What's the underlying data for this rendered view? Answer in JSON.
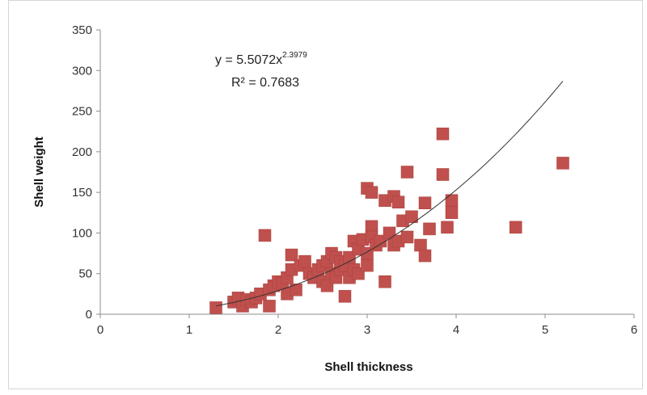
{
  "chart_data": {
    "type": "scatter",
    "xlabel": "Shell thickness",
    "ylabel": "Shell weight",
    "xlim": [
      0,
      6
    ],
    "ylim": [
      0,
      350
    ],
    "x_ticks": [
      "0",
      "1",
      "2",
      "3",
      "4",
      "5",
      "6"
    ],
    "y_ticks": [
      "0",
      "50",
      "100",
      "150",
      "200",
      "250",
      "300",
      "350"
    ],
    "grid": false,
    "legend": "none",
    "marker_color": "#c0504d",
    "trendline": {
      "type": "power",
      "coefficient": 5.5072,
      "exponent": 2.3979,
      "x_range": [
        1.3,
        5.2
      ],
      "equation_prefix": "y = 5.5072x",
      "equation_exponent": "2.3979",
      "r_squared": "R² = 0.7683",
      "color": "#333333"
    },
    "series": [
      {
        "points": [
          [
            1.3,
            8
          ],
          [
            1.5,
            15
          ],
          [
            1.55,
            20
          ],
          [
            1.6,
            10
          ],
          [
            1.65,
            18
          ],
          [
            1.7,
            15
          ],
          [
            1.75,
            20
          ],
          [
            1.8,
            25
          ],
          [
            1.85,
            97
          ],
          [
            1.9,
            10
          ],
          [
            1.9,
            30
          ],
          [
            1.95,
            35
          ],
          [
            2.0,
            40
          ],
          [
            2.05,
            38
          ],
          [
            2.1,
            25
          ],
          [
            2.1,
            45
          ],
          [
            2.15,
            73
          ],
          [
            2.15,
            55
          ],
          [
            2.2,
            30
          ],
          [
            2.25,
            60
          ],
          [
            2.3,
            65
          ],
          [
            2.35,
            50
          ],
          [
            2.4,
            45
          ],
          [
            2.45,
            55
          ],
          [
            2.5,
            60
          ],
          [
            2.5,
            40
          ],
          [
            2.55,
            35
          ],
          [
            2.55,
            65
          ],
          [
            2.6,
            75
          ],
          [
            2.6,
            50
          ],
          [
            2.65,
            45
          ],
          [
            2.65,
            70
          ],
          [
            2.7,
            55
          ],
          [
            2.7,
            65
          ],
          [
            2.75,
            22
          ],
          [
            2.75,
            60
          ],
          [
            2.8,
            45
          ],
          [
            2.8,
            70
          ],
          [
            2.85,
            90
          ],
          [
            2.85,
            55
          ],
          [
            2.9,
            50
          ],
          [
            2.9,
            80
          ],
          [
            2.95,
            92
          ],
          [
            3.0,
            155
          ],
          [
            3.0,
            60
          ],
          [
            3.0,
            75
          ],
          [
            3.05,
            150
          ],
          [
            3.05,
            108
          ],
          [
            3.05,
            95
          ],
          [
            3.1,
            85
          ],
          [
            3.15,
            90
          ],
          [
            3.2,
            40
          ],
          [
            3.2,
            140
          ],
          [
            3.25,
            100
          ],
          [
            3.3,
            145
          ],
          [
            3.3,
            85
          ],
          [
            3.35,
            138
          ],
          [
            3.35,
            90
          ],
          [
            3.4,
            115
          ],
          [
            3.45,
            175
          ],
          [
            3.45,
            95
          ],
          [
            3.5,
            120
          ],
          [
            3.6,
            85
          ],
          [
            3.65,
            137
          ],
          [
            3.65,
            72
          ],
          [
            3.7,
            105
          ],
          [
            3.85,
            222
          ],
          [
            3.85,
            172
          ],
          [
            3.9,
            107
          ],
          [
            3.95,
            140
          ],
          [
            3.95,
            125
          ],
          [
            4.67,
            107
          ],
          [
            5.2,
            186
          ]
        ]
      }
    ]
  }
}
